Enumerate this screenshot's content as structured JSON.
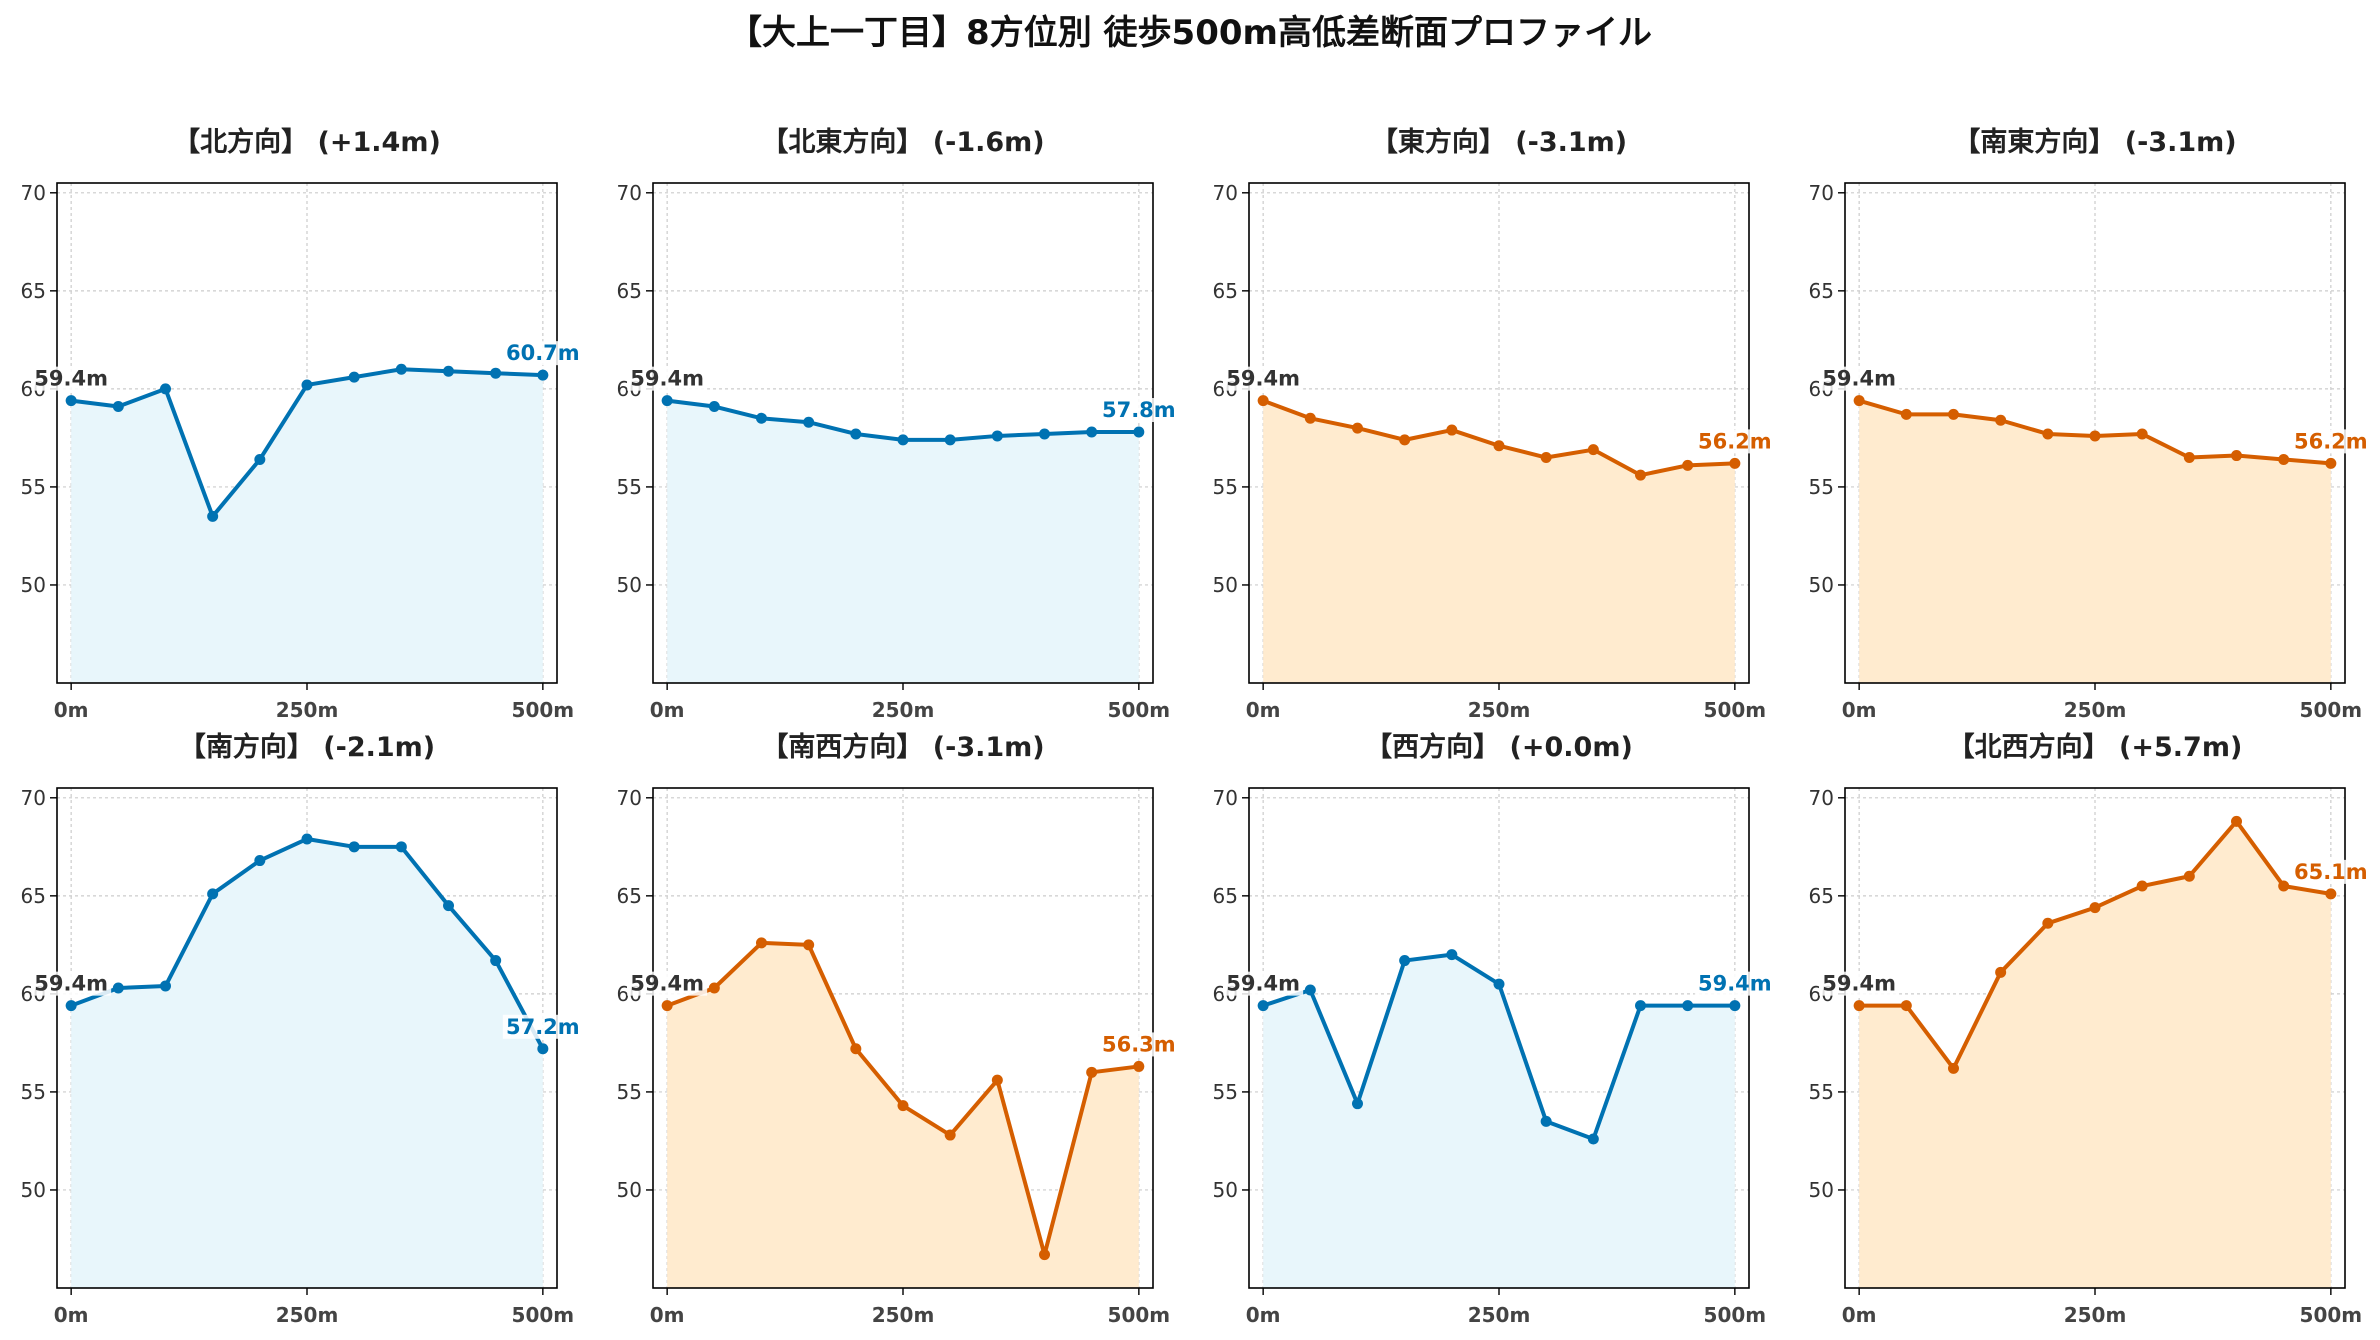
{
  "title": "【大上一丁目】8方位別 徒歩500m高低差断面プロファイル",
  "colors": {
    "up": "#0072b2",
    "down": "#d55e00",
    "fill_up": "#e8f6fb",
    "fill_down": "#ffebcf",
    "start_label": "#333333",
    "grid": "#cccccc"
  },
  "chart_data": [
    {
      "type": "area",
      "title": "【北方向】 (+1.4m)",
      "x": [
        0,
        50,
        100,
        150,
        200,
        250,
        300,
        350,
        400,
        450,
        500
      ],
      "values": [
        59.4,
        59.1,
        60.0,
        53.5,
        56.4,
        60.2,
        60.6,
        61.0,
        60.9,
        60.8,
        60.7
      ],
      "start_label": "59.4m",
      "end_label": "60.7m",
      "trend": "up",
      "xticks": [
        0,
        250,
        500
      ],
      "xtick_labels": [
        "0m",
        "250m",
        "500m"
      ],
      "yticks": [
        50,
        55,
        60,
        65,
        70
      ],
      "ytick_labels": [
        "50",
        "55",
        "60",
        "65",
        "70"
      ],
      "xlim": [
        -15,
        515
      ],
      "ylim": [
        45,
        70.5
      ],
      "grid": true
    },
    {
      "type": "area",
      "title": "【北東方向】 (-1.6m)",
      "x": [
        0,
        50,
        100,
        150,
        200,
        250,
        300,
        350,
        400,
        450,
        500
      ],
      "values": [
        59.4,
        59.1,
        58.5,
        58.3,
        57.7,
        57.4,
        57.4,
        57.6,
        57.7,
        57.8,
        57.8
      ],
      "start_label": "59.4m",
      "end_label": "57.8m",
      "trend": "up",
      "xticks": [
        0,
        250,
        500
      ],
      "xtick_labels": [
        "0m",
        "250m",
        "500m"
      ],
      "yticks": [
        50,
        55,
        60,
        65,
        70
      ],
      "ytick_labels": [
        "50",
        "55",
        "60",
        "65",
        "70"
      ],
      "xlim": [
        -15,
        515
      ],
      "ylim": [
        45,
        70.5
      ],
      "grid": true
    },
    {
      "type": "area",
      "title": "【東方向】 (-3.1m)",
      "x": [
        0,
        50,
        100,
        150,
        200,
        250,
        300,
        350,
        400,
        450,
        500
      ],
      "values": [
        59.4,
        58.5,
        58.0,
        57.4,
        57.9,
        57.1,
        56.5,
        56.9,
        55.6,
        56.1,
        56.2
      ],
      "start_label": "59.4m",
      "end_label": "56.2m",
      "trend": "down",
      "xticks": [
        0,
        250,
        500
      ],
      "xtick_labels": [
        "0m",
        "250m",
        "500m"
      ],
      "yticks": [
        50,
        55,
        60,
        65,
        70
      ],
      "ytick_labels": [
        "50",
        "55",
        "60",
        "65",
        "70"
      ],
      "xlim": [
        -15,
        515
      ],
      "ylim": [
        45,
        70.5
      ],
      "grid": true
    },
    {
      "type": "area",
      "title": "【南東方向】 (-3.1m)",
      "x": [
        0,
        50,
        100,
        150,
        200,
        250,
        300,
        350,
        400,
        450,
        500
      ],
      "values": [
        59.4,
        58.7,
        58.7,
        58.4,
        57.7,
        57.6,
        57.7,
        56.5,
        56.6,
        56.4,
        56.2
      ],
      "start_label": "59.4m",
      "end_label": "56.2m",
      "trend": "down",
      "xticks": [
        0,
        250,
        500
      ],
      "xtick_labels": [
        "0m",
        "250m",
        "500m"
      ],
      "yticks": [
        50,
        55,
        60,
        65,
        70
      ],
      "ytick_labels": [
        "50",
        "55",
        "60",
        "65",
        "70"
      ],
      "xlim": [
        -15,
        515
      ],
      "ylim": [
        45,
        70.5
      ],
      "grid": true
    },
    {
      "type": "area",
      "title": "【南方向】 (-2.1m)",
      "x": [
        0,
        50,
        100,
        150,
        200,
        250,
        300,
        350,
        400,
        450,
        500
      ],
      "values": [
        59.4,
        60.3,
        60.4,
        65.1,
        66.8,
        67.9,
        67.5,
        67.5,
        64.5,
        61.7,
        57.2
      ],
      "start_label": "59.4m",
      "end_label": "57.2m",
      "trend": "up",
      "xticks": [
        0,
        250,
        500
      ],
      "xtick_labels": [
        "0m",
        "250m",
        "500m"
      ],
      "yticks": [
        50,
        55,
        60,
        65,
        70
      ],
      "ytick_labels": [
        "50",
        "55",
        "60",
        "65",
        "70"
      ],
      "xlim": [
        -15,
        515
      ],
      "ylim": [
        45,
        70.5
      ],
      "grid": true
    },
    {
      "type": "area",
      "title": "【南西方向】 (-3.1m)",
      "x": [
        0,
        50,
        100,
        150,
        200,
        250,
        300,
        350,
        400,
        450,
        500
      ],
      "values": [
        59.4,
        60.3,
        62.6,
        62.5,
        57.2,
        54.3,
        52.8,
        55.6,
        46.7,
        56.0,
        56.3
      ],
      "start_label": "59.4m",
      "end_label": "56.3m",
      "trend": "down",
      "xticks": [
        0,
        250,
        500
      ],
      "xtick_labels": [
        "0m",
        "250m",
        "500m"
      ],
      "yticks": [
        50,
        55,
        60,
        65,
        70
      ],
      "ytick_labels": [
        "50",
        "55",
        "60",
        "65",
        "70"
      ],
      "xlim": [
        -15,
        515
      ],
      "ylim": [
        45,
        70.5
      ],
      "grid": true
    },
    {
      "type": "area",
      "title": "【西方向】 (+0.0m)",
      "x": [
        0,
        50,
        100,
        150,
        200,
        250,
        300,
        350,
        400,
        450,
        500
      ],
      "values": [
        59.4,
        60.2,
        54.4,
        61.7,
        62.0,
        60.5,
        53.5,
        52.6,
        59.4,
        59.4,
        59.4
      ],
      "start_label": "59.4m",
      "end_label": "59.4m",
      "trend": "up",
      "xticks": [
        0,
        250,
        500
      ],
      "xtick_labels": [
        "0m",
        "250m",
        "500m"
      ],
      "yticks": [
        50,
        55,
        60,
        65,
        70
      ],
      "ytick_labels": [
        "50",
        "55",
        "60",
        "65",
        "70"
      ],
      "xlim": [
        -15,
        515
      ],
      "ylim": [
        45,
        70.5
      ],
      "grid": true
    },
    {
      "type": "area",
      "title": "【北西方向】 (+5.7m)",
      "x": [
        0,
        50,
        100,
        150,
        200,
        250,
        300,
        350,
        400,
        450,
        500
      ],
      "values": [
        59.4,
        59.4,
        56.2,
        61.1,
        63.6,
        64.4,
        65.5,
        66.0,
        68.8,
        65.5,
        65.1
      ],
      "start_label": "59.4m",
      "end_label": "65.1m",
      "trend": "down",
      "xticks": [
        0,
        250,
        500
      ],
      "xtick_labels": [
        "0m",
        "250m",
        "500m"
      ],
      "yticks": [
        50,
        55,
        60,
        65,
        70
      ],
      "ytick_labels": [
        "50",
        "55",
        "60",
        "65",
        "70"
      ],
      "xlim": [
        -15,
        515
      ],
      "ylim": [
        45,
        70.5
      ],
      "grid": true
    }
  ]
}
